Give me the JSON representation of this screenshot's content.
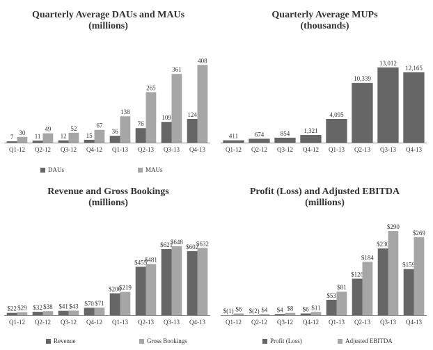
{
  "colors": {
    "dark": "#666666",
    "light": "#a6a6a6",
    "axis": "#888888"
  },
  "chart_data": [
    {
      "id": "dau-mau",
      "type": "bar",
      "title_line1": "Quarterly Average DAUs and MAUs",
      "title_line2": "(millions)",
      "categories": [
        "Q1-12",
        "Q2-12",
        "Q3-12",
        "Q4-12",
        "Q1-13",
        "Q2-13",
        "Q3-13",
        "Q4-13"
      ],
      "series": [
        {
          "name": "DAUs",
          "color": "#666666",
          "values": [
            7,
            11,
            12,
            15,
            36,
            76,
            109,
            124
          ],
          "labels": [
            "7",
            "11",
            "12",
            "15",
            "36",
            "76",
            "109",
            "124"
          ]
        },
        {
          "name": "MAUs",
          "color": "#a6a6a6",
          "values": [
            30,
            49,
            52,
            67,
            138,
            265,
            361,
            408
          ],
          "labels": [
            "30",
            "49",
            "52",
            "67",
            "138",
            "265",
            "361",
            "408"
          ]
        }
      ],
      "ylim": [
        0,
        420
      ]
    },
    {
      "id": "mups",
      "type": "bar",
      "title_line1": "Quarterly Average MUPs",
      "title_line2": "(thousands)",
      "categories": [
        "Q1-12",
        "Q2-12",
        "Q3-12",
        "Q4-12",
        "Q1-13",
        "Q2-13",
        "Q3-13",
        "Q4-13"
      ],
      "series": [
        {
          "name": "MUPs",
          "color": "#666666",
          "values": [
            411,
            674,
            854,
            1321,
            4095,
            10339,
            13012,
            12165
          ],
          "labels": [
            "411",
            "674",
            "854",
            "1,321",
            "4,095",
            "10,339",
            "13,012",
            "12,165"
          ]
        }
      ],
      "ylim": [
        0,
        13000
      ]
    },
    {
      "id": "revenue",
      "type": "bar",
      "title_line1": "Revenue and Gross Bookings",
      "title_line2": "(millions)",
      "categories": [
        "Q1-12",
        "Q2-12",
        "Q3-12",
        "Q4-12",
        "Q1-13",
        "Q2-13",
        "Q3-13",
        "Q4-13"
      ],
      "series": [
        {
          "name": "Revenue",
          "color": "#666666",
          "values": [
            22,
            32,
            41,
            70,
            206,
            455,
            621,
            602
          ],
          "labels": [
            "$22",
            "$32",
            "$41",
            "$70",
            "$206",
            "$455",
            "$621",
            "$602"
          ]
        },
        {
          "name": "Gross Bookings",
          "color": "#a6a6a6",
          "values": [
            29,
            38,
            43,
            71,
            219,
            481,
            648,
            632
          ],
          "labels": [
            "$29",
            "$38",
            "$43",
            "$71",
            "$219",
            "$481",
            "$648",
            "$632"
          ]
        }
      ],
      "ylim": [
        0,
        660
      ]
    },
    {
      "id": "ebitda",
      "type": "bar",
      "title_line1": "Profit (Loss) and Adjusted EBITDA",
      "title_line2": "(millions)",
      "categories": [
        "Q1-12",
        "Q2-12",
        "Q3-12",
        "Q4-12",
        "Q1-13",
        "Q2-13",
        "Q3-13",
        "Q4-13"
      ],
      "series": [
        {
          "name": "Profit (Loss)",
          "color": "#666666",
          "values": [
            -1,
            -2,
            4,
            6,
            53,
            126,
            230,
            159
          ],
          "labels": [
            "$(1)",
            "$(2)",
            "$4",
            "$6",
            "$53",
            "$126",
            "$230",
            "$159"
          ]
        },
        {
          "name": "Adjusted EBITDA",
          "color": "#a6a6a6",
          "values": [
            6,
            4,
            8,
            11,
            81,
            184,
            290,
            269
          ],
          "labels": [
            "$6",
            "$4",
            "$8",
            "$11",
            "$81",
            "$184",
            "$290",
            "$269"
          ]
        }
      ],
      "ylim": [
        0,
        295
      ]
    }
  ]
}
